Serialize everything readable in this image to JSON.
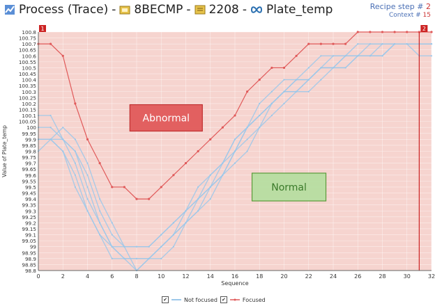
{
  "header": {
    "process": "Process (Trace)",
    "sep": "-",
    "lot": "8BECMP",
    "recipe_id": "2208",
    "parameter": "Plate_temp",
    "recipe_step_label": "Recipe step #",
    "recipe_step_value": "2",
    "context_label": "Context #",
    "context_value": "15"
  },
  "colors": {
    "normal_series": "#9cc8ea",
    "focused_series": "#e05a5a",
    "abnormal_box": "#e05a5a",
    "normal_box": "#b6dda0",
    "background": "#f6d4cf",
    "step_marker": "#cc2222"
  },
  "chart_data": {
    "type": "line",
    "xlabel": "Sequence",
    "ylabel": "Value of Plate_temp",
    "xlim": [
      0,
      32
    ],
    "ylim": [
      98.8,
      100.8
    ],
    "xticks": [
      "0",
      "2",
      "4",
      "6",
      "8",
      "10",
      "12",
      "14",
      "16",
      "18",
      "20",
      "22",
      "24",
      "26",
      "28",
      "30",
      "32"
    ],
    "yticks": [
      "100.8",
      "100.75",
      "100.7",
      "100.65",
      "100.6",
      "100.55",
      "100.5",
      "100.45",
      "100.4",
      "100.35",
      "100.3",
      "100.25",
      "100.2",
      "100.15",
      "100.1",
      "100.05",
      "100",
      "99.95",
      "99.9",
      "99.85",
      "99.8",
      "99.75",
      "99.7",
      "99.65",
      "99.6",
      "99.55",
      "99.5",
      "99.45",
      "99.4",
      "99.35",
      "99.3",
      "99.25",
      "99.2",
      "99.15",
      "99.1",
      "99.05",
      "99",
      "98.95",
      "98.9",
      "98.85",
      "98.8"
    ],
    "step_markers": [
      {
        "label": "1",
        "x": 0
      },
      {
        "label": "2",
        "x": 31
      }
    ],
    "annotations": [
      {
        "text": "Abnormal",
        "x": 10.4,
        "y": 100.08
      },
      {
        "text": "Normal",
        "x": 20.4,
        "y": 99.5
      }
    ],
    "legend": [
      {
        "label": "Not focused",
        "checked": true
      },
      {
        "label": "Focused",
        "checked": true
      }
    ],
    "focused": {
      "name": "Focused",
      "x": [
        0,
        1,
        2,
        3,
        4,
        5,
        6,
        7,
        8,
        9,
        10,
        11,
        12,
        13,
        14,
        15,
        16,
        17,
        18,
        19,
        20,
        21,
        22,
        23,
        24,
        25,
        26,
        27,
        28,
        29,
        30,
        31,
        32
      ],
      "y": [
        100.7,
        100.7,
        100.6,
        100.2,
        99.9,
        99.7,
        99.5,
        99.5,
        99.4,
        99.4,
        99.5,
        99.6,
        99.7,
        99.8,
        99.9,
        100.0,
        100.1,
        100.3,
        100.4,
        100.5,
        100.5,
        100.6,
        100.7,
        100.7,
        100.7,
        100.7,
        100.8,
        100.8,
        100.8,
        100.8,
        100.8,
        100.8,
        100.8
      ]
    },
    "normal": [
      {
        "x": [
          0,
          1,
          2,
          3,
          4,
          5,
          6,
          7,
          8,
          9,
          10,
          11,
          12,
          13,
          14,
          15,
          16,
          17,
          18,
          19,
          20,
          21,
          22,
          23,
          24,
          25,
          26,
          27,
          28,
          29,
          30,
          31,
          32
        ],
        "y": [
          99.9,
          99.9,
          99.9,
          99.8,
          99.6,
          99.3,
          99.1,
          99.0,
          99.0,
          99.0,
          99.1,
          99.2,
          99.3,
          99.4,
          99.5,
          99.7,
          99.9,
          100.0,
          100.1,
          100.2,
          100.3,
          100.4,
          100.4,
          100.5,
          100.5,
          100.5,
          100.6,
          100.6,
          100.6,
          100.7,
          100.7,
          100.7,
          100.7
        ]
      },
      {
        "x": [
          0,
          1,
          2,
          3,
          4,
          5,
          6,
          7,
          8,
          9,
          10,
          11,
          12,
          13,
          14,
          15,
          16,
          17,
          18,
          19,
          20,
          21,
          22,
          23,
          24,
          25,
          26,
          27,
          28,
          29,
          30,
          31,
          32
        ],
        "y": [
          100.0,
          100.0,
          99.9,
          99.7,
          99.4,
          99.2,
          99.0,
          98.9,
          98.9,
          98.9,
          99.0,
          99.1,
          99.2,
          99.4,
          99.6,
          99.7,
          99.8,
          100.0,
          100.1,
          100.2,
          100.3,
          100.4,
          100.4,
          100.5,
          100.5,
          100.6,
          100.6,
          100.6,
          100.7,
          100.7,
          100.7,
          100.7,
          100.7
        ]
      },
      {
        "x": [
          0,
          1,
          2,
          3,
          4,
          5,
          6,
          7,
          8,
          9,
          10,
          11,
          12,
          13,
          14,
          15,
          16,
          17,
          18,
          19,
          20,
          21,
          22,
          23,
          24,
          25,
          26,
          27,
          28,
          29,
          30,
          31,
          32
        ],
        "y": [
          99.9,
          99.9,
          99.8,
          99.6,
          99.3,
          99.1,
          98.9,
          98.9,
          98.9,
          98.9,
          99.0,
          99.1,
          99.2,
          99.3,
          99.5,
          99.6,
          99.8,
          99.9,
          100.0,
          100.2,
          100.3,
          100.3,
          100.4,
          100.5,
          100.6,
          100.6,
          100.6,
          100.7,
          100.7,
          100.7,
          100.7,
          100.7,
          100.7
        ]
      },
      {
        "x": [
          0,
          1,
          2,
          3,
          4,
          5,
          6,
          7,
          8,
          9,
          10,
          11,
          12,
          13,
          14,
          15,
          16,
          17,
          18,
          19,
          20,
          21,
          22,
          23,
          24,
          25,
          26,
          27,
          28,
          29,
          30,
          31,
          32
        ],
        "y": [
          100.1,
          100.1,
          99.9,
          99.8,
          99.5,
          99.2,
          99.0,
          99.0,
          98.8,
          98.9,
          99.0,
          99.1,
          99.3,
          99.4,
          99.5,
          99.6,
          99.8,
          100.0,
          100.1,
          100.2,
          100.3,
          100.3,
          100.4,
          100.5,
          100.5,
          100.6,
          100.6,
          100.6,
          100.6,
          100.7,
          100.7,
          100.6,
          100.6
        ]
      },
      {
        "x": [
          0,
          1,
          2,
          3,
          4,
          5,
          6,
          7,
          8,
          9,
          10,
          11,
          12,
          13,
          14,
          15,
          16,
          17,
          18,
          19,
          20,
          21,
          22,
          23,
          24,
          25,
          26,
          27,
          28,
          29,
          30,
          31,
          32
        ],
        "y": [
          99.9,
          99.9,
          99.8,
          99.5,
          99.3,
          99.1,
          99.0,
          98.9,
          98.8,
          98.9,
          98.9,
          99.0,
          99.2,
          99.3,
          99.4,
          99.6,
          99.7,
          99.8,
          100.0,
          100.1,
          100.2,
          100.3,
          100.3,
          100.4,
          100.5,
          100.5,
          100.6,
          100.6,
          100.6,
          100.7,
          100.7,
          100.7,
          100.7
        ]
      },
      {
        "x": [
          0,
          1,
          2,
          3,
          4,
          5,
          6,
          7,
          8,
          9,
          10,
          11,
          12,
          13,
          14,
          15,
          16,
          17,
          18,
          19,
          20,
          21,
          22,
          23,
          24,
          25,
          26,
          27,
          28,
          29,
          30,
          31,
          32
        ],
        "y": [
          99.8,
          99.9,
          100.0,
          99.9,
          99.7,
          99.4,
          99.2,
          99.0,
          99.0,
          99.0,
          99.1,
          99.2,
          99.3,
          99.5,
          99.6,
          99.7,
          99.9,
          100.0,
          100.2,
          100.3,
          100.4,
          100.4,
          100.5,
          100.6,
          100.6,
          100.6,
          100.7,
          100.7,
          100.7,
          100.7,
          100.7,
          100.7,
          100.7
        ]
      }
    ]
  }
}
